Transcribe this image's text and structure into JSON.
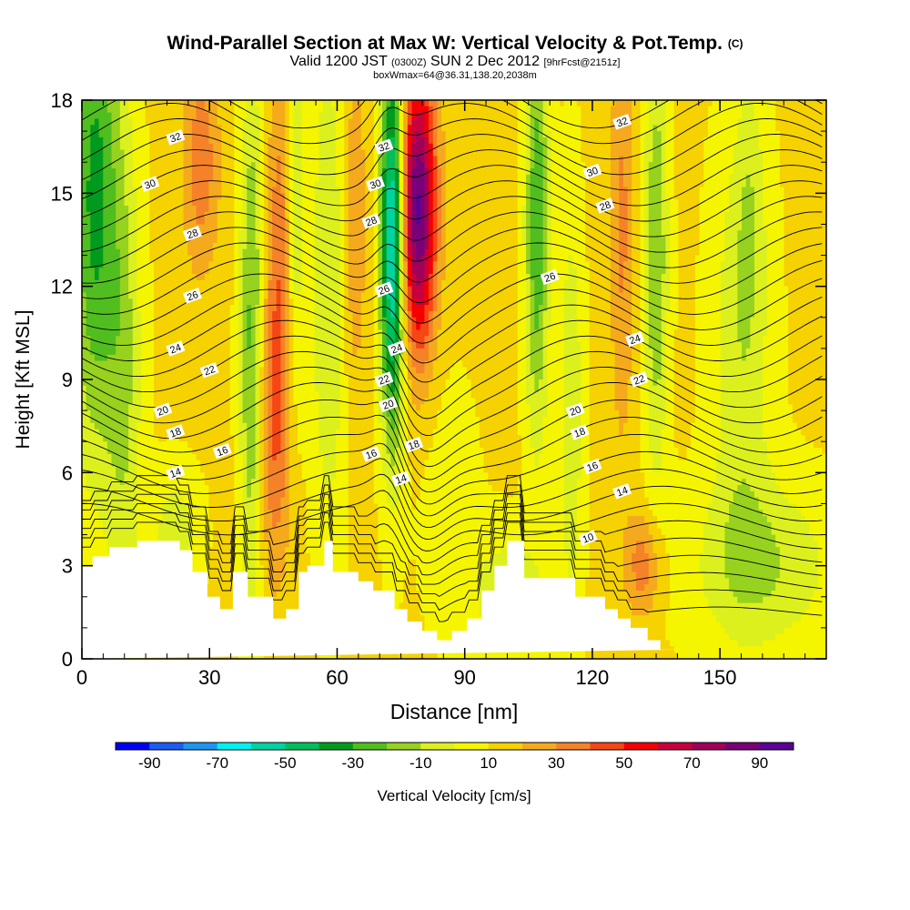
{
  "chart_data": {
    "type": "heatmap",
    "title": "Wind-Parallel Section at Max W: Vertical Velocity & Pot.Temp.",
    "title_mark": "(C)",
    "subtitle_main": "Valid 1200 JST",
    "subtitle_utc": "(0300Z)",
    "subtitle_date": "SUN 2 Dec 2012",
    "subtitle_fcst": "[9hrFcst@2151z]",
    "subtitle2": "boxWmax=64@36.31,138.20,2038m",
    "xlabel": "Distance [nm]",
    "ylabel": "Height [Kft MSL]",
    "xlim": [
      0,
      175
    ],
    "ylim": [
      0,
      18
    ],
    "xticks": [
      0,
      30,
      60,
      90,
      120,
      150
    ],
    "yticks": [
      0,
      3,
      6,
      9,
      12,
      15,
      18
    ],
    "colorbar": {
      "label": "Vertical Velocity [cm/s]",
      "range": [
        -100,
        100
      ],
      "step": 10,
      "tick_values": [
        -90,
        -70,
        -50,
        -30,
        -10,
        10,
        30,
        50,
        70,
        90
      ],
      "colors": [
        "#0000f5",
        "#1e5cf0",
        "#1e96f0",
        "#00f0f0",
        "#00d2a0",
        "#00be5a",
        "#009b1e",
        "#50be1e",
        "#96d21e",
        "#dcf01e",
        "#f5f500",
        "#f5d200",
        "#f5aa1e",
        "#f58228",
        "#f54614",
        "#f50000",
        "#c8003c",
        "#a0005a",
        "#780078",
        "#5a0096"
      ]
    },
    "terrain": {
      "x": [
        0,
        2.5,
        2.5,
        6.5,
        6.5,
        13,
        13,
        23,
        23,
        26,
        26,
        29.5,
        29.5,
        32.5,
        32.5,
        35.5,
        35.5,
        39,
        39,
        45,
        45,
        48,
        48,
        51,
        51,
        53,
        53,
        57,
        57,
        59,
        59,
        65,
        65,
        68.5,
        68.5,
        73.5,
        73.5,
        76.5,
        76.5,
        80,
        80,
        83.5,
        83.5,
        87,
        87,
        90.5,
        90.5,
        94,
        94,
        97,
        97,
        100,
        100,
        104,
        104,
        116,
        116,
        123,
        123,
        126,
        126,
        129,
        129,
        133,
        133,
        136,
        136,
        139,
        139,
        142,
        142,
        175
      ],
      "h": [
        3,
        3,
        3.3,
        3.3,
        3.6,
        3.6,
        3.8,
        3.8,
        3.5,
        3.5,
        2.8,
        2.8,
        2,
        2,
        1.6,
        1.6,
        2.8,
        2.8,
        2,
        2,
        1.3,
        1.3,
        1.6,
        1.6,
        2.8,
        2.8,
        3,
        3,
        3.8,
        3.8,
        2.8,
        2.8,
        2.5,
        2.5,
        2.2,
        2.2,
        1.6,
        1.6,
        1.2,
        1.2,
        0.9,
        0.9,
        0.6,
        0.6,
        0.9,
        0.9,
        1.3,
        1.3,
        2.2,
        2.2,
        3,
        3,
        3.8,
        3.8,
        2.6,
        2.6,
        2,
        2,
        1.6,
        1.6,
        1.3,
        1.3,
        1.0,
        1.0,
        0.6,
        0.6,
        0.3,
        0.3,
        0.3,
        0.3,
        0.3
      ]
    },
    "isentrope_labels": [
      {
        "x": 22,
        "y": 16.8,
        "text": "32"
      },
      {
        "x": 16,
        "y": 15.3,
        "text": "30"
      },
      {
        "x": 26,
        "y": 13.7,
        "text": "28"
      },
      {
        "x": 26,
        "y": 11.7,
        "text": "26"
      },
      {
        "x": 22,
        "y": 10.0,
        "text": "24"
      },
      {
        "x": 30,
        "y": 9.3,
        "text": "22"
      },
      {
        "x": 19,
        "y": 8.0,
        "text": "20"
      },
      {
        "x": 22,
        "y": 7.3,
        "text": "18"
      },
      {
        "x": 33,
        "y": 6.7,
        "text": "16"
      },
      {
        "x": 22,
        "y": 6.0,
        "text": "14"
      },
      {
        "x": 71,
        "y": 16.5,
        "text": "32"
      },
      {
        "x": 69,
        "y": 15.3,
        "text": "30"
      },
      {
        "x": 68,
        "y": 14.1,
        "text": "28"
      },
      {
        "x": 71,
        "y": 11.9,
        "text": "26"
      },
      {
        "x": 74,
        "y": 10.0,
        "text": "24"
      },
      {
        "x": 71,
        "y": 9.0,
        "text": "22"
      },
      {
        "x": 72,
        "y": 8.2,
        "text": "20"
      },
      {
        "x": 78,
        "y": 6.9,
        "text": "18"
      },
      {
        "x": 68,
        "y": 6.6,
        "text": "16"
      },
      {
        "x": 75,
        "y": 5.8,
        "text": "14"
      },
      {
        "x": 127,
        "y": 17.3,
        "text": "32"
      },
      {
        "x": 120,
        "y": 15.7,
        "text": "30"
      },
      {
        "x": 123,
        "y": 14.6,
        "text": "28"
      },
      {
        "x": 110,
        "y": 12.3,
        "text": "26"
      },
      {
        "x": 130,
        "y": 10.3,
        "text": "24"
      },
      {
        "x": 131,
        "y": 9.0,
        "text": "22"
      },
      {
        "x": 116,
        "y": 8.0,
        "text": "20"
      },
      {
        "x": 117,
        "y": 7.3,
        "text": "18"
      },
      {
        "x": 120,
        "y": 6.2,
        "text": "16"
      },
      {
        "x": 127,
        "y": 5.4,
        "text": "14"
      },
      {
        "x": 119,
        "y": 3.9,
        "text": "10"
      }
    ]
  }
}
